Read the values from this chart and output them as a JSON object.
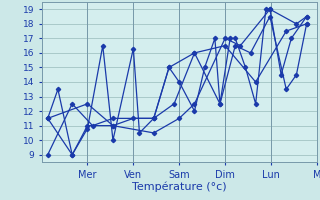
{
  "xlabel": "Température (°c)",
  "background_color": "#cce8e8",
  "plot_bg_color": "#d4eeee",
  "line_color": "#1a3aaa",
  "grid_color": "#99bbbb",
  "separator_color": "#7799aa",
  "ylim": [
    8.5,
    19.5
  ],
  "yticks": [
    9,
    10,
    11,
    12,
    13,
    14,
    15,
    16,
    17,
    18,
    19
  ],
  "ytick_fontsize": 6.5,
  "xtick_fontsize": 7,
  "xlabel_fontsize": 8,
  "xlim": [
    0,
    13.5
  ],
  "day_labels": [
    "Mer",
    "Ven",
    "Sam",
    "Dim",
    "Lun",
    "M"
  ],
  "day_positions": [
    2.25,
    4.5,
    6.75,
    9.0,
    11.25,
    13.5
  ],
  "series": [
    [
      [
        0.3,
        11.5
      ],
      [
        0.8,
        13.5
      ],
      [
        1.5,
        9.0
      ],
      [
        2.25,
        10.8
      ],
      [
        3.0,
        16.5
      ],
      [
        3.5,
        10.0
      ],
      [
        4.5,
        16.3
      ],
      [
        4.8,
        10.5
      ],
      [
        5.5,
        11.5
      ],
      [
        6.25,
        15.0
      ],
      [
        6.75,
        14.0
      ],
      [
        7.5,
        12.0
      ],
      [
        8.0,
        15.0
      ],
      [
        8.5,
        17.0
      ],
      [
        8.75,
        12.5
      ],
      [
        9.25,
        17.0
      ],
      [
        9.5,
        17.0
      ],
      [
        10.0,
        15.0
      ],
      [
        10.5,
        12.5
      ],
      [
        11.0,
        19.0
      ],
      [
        11.2,
        19.0
      ],
      [
        11.75,
        14.5
      ],
      [
        12.25,
        17.0
      ],
      [
        13.0,
        18.5
      ]
    ],
    [
      [
        0.3,
        11.5
      ],
      [
        1.5,
        9.0
      ],
      [
        2.25,
        11.0
      ],
      [
        3.5,
        11.0
      ],
      [
        4.5,
        11.5
      ],
      [
        5.5,
        11.5
      ],
      [
        6.5,
        12.5
      ],
      [
        7.5,
        16.0
      ],
      [
        8.75,
        12.5
      ],
      [
        9.5,
        16.5
      ],
      [
        10.25,
        16.0
      ],
      [
        11.2,
        18.5
      ],
      [
        12.0,
        13.5
      ],
      [
        12.5,
        14.5
      ],
      [
        13.0,
        18.0
      ]
    ],
    [
      [
        0.3,
        9.0
      ],
      [
        1.5,
        12.5
      ],
      [
        2.5,
        11.0
      ],
      [
        3.5,
        11.5
      ],
      [
        5.5,
        11.5
      ],
      [
        6.25,
        15.0
      ],
      [
        7.5,
        16.0
      ],
      [
        9.0,
        16.5
      ],
      [
        10.5,
        14.0
      ],
      [
        12.0,
        17.5
      ],
      [
        13.0,
        18.0
      ]
    ],
    [
      [
        0.3,
        11.5
      ],
      [
        2.25,
        12.5
      ],
      [
        3.5,
        11.0
      ],
      [
        5.5,
        10.5
      ],
      [
        6.75,
        11.5
      ],
      [
        7.5,
        12.5
      ],
      [
        9.0,
        17.0
      ],
      [
        9.75,
        16.5
      ],
      [
        11.2,
        19.0
      ],
      [
        12.5,
        18.0
      ],
      [
        13.0,
        18.5
      ]
    ]
  ]
}
